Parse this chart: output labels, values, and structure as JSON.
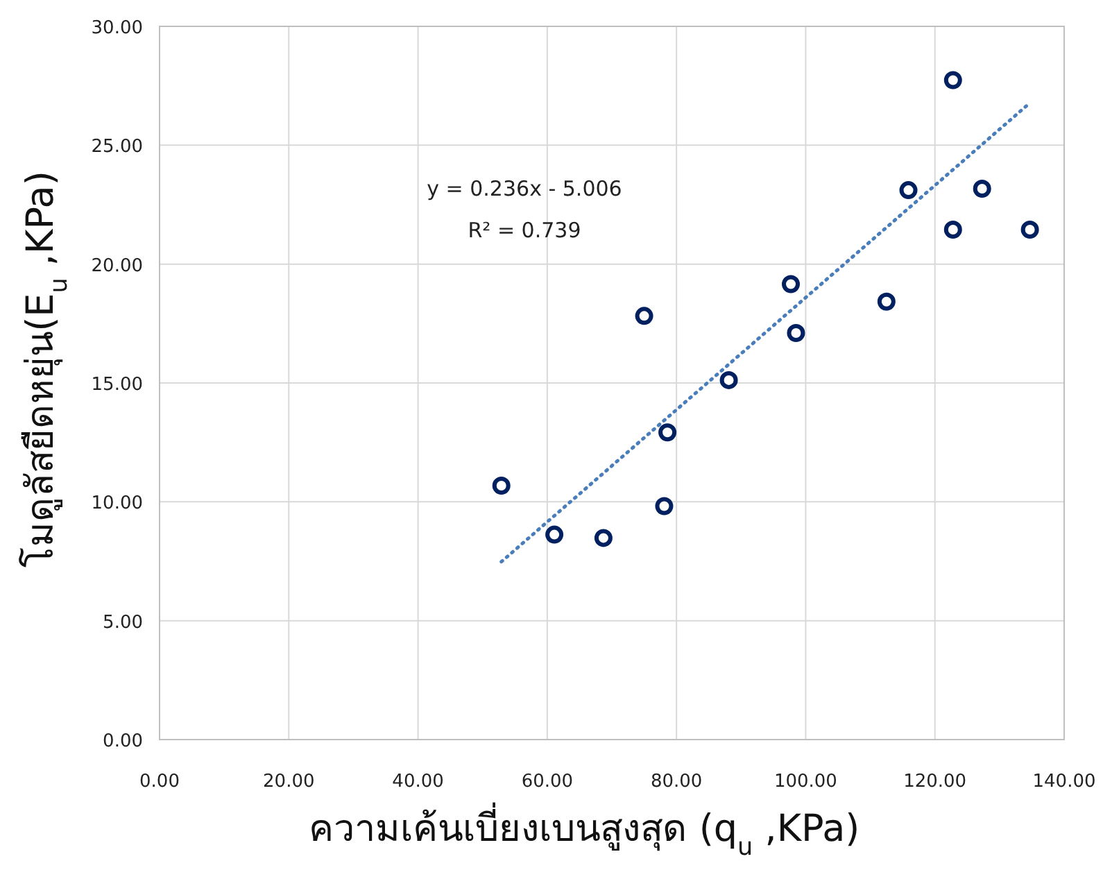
{
  "chart_data": {
    "type": "scatter",
    "xlabel": "ความเค้นเบี่ยงเบนสูงสุด (q$_{u}$ ,KPa)",
    "ylabel": "โมดูลัสยืดหยุ่น(E$_{u}$ ,KPa)",
    "annotations": [
      "y = 0.236x - 5.006",
      "R² = 0.739"
    ],
    "xlim": [
      0,
      140
    ],
    "ylim": [
      0,
      30
    ],
    "xticks": [
      {
        "value": 0,
        "label": "0.00"
      },
      {
        "value": 20,
        "label": "20.00"
      },
      {
        "value": 40,
        "label": "40.00"
      },
      {
        "value": 60,
        "label": "60.00"
      },
      {
        "value": 80,
        "label": "80.00"
      },
      {
        "value": 100,
        "label": "100.00"
      },
      {
        "value": 120,
        "label": "120.00"
      },
      {
        "value": 140,
        "label": "140.00"
      }
    ],
    "yticks": [
      {
        "value": 0,
        "label": "0.00"
      },
      {
        "value": 5,
        "label": "5.00"
      },
      {
        "value": 10,
        "label": "10.00"
      },
      {
        "value": 15,
        "label": "15.00"
      },
      {
        "value": 20,
        "label": "20.00"
      },
      {
        "value": 25,
        "label": "25.00"
      },
      {
        "value": 30,
        "label": "30.00"
      }
    ],
    "grid": true,
    "series": [
      {
        "marker": "circle",
        "color": "#002060",
        "x": [
          52.9,
          61.1,
          68.7,
          78.1,
          78.6,
          75.0,
          88.1,
          97.7,
          98.5,
          112.5,
          115.9,
          122.8,
          122.8,
          127.3,
          134.7
        ],
        "values": [
          10.68,
          8.62,
          8.48,
          9.82,
          12.92,
          17.82,
          15.12,
          19.16,
          17.1,
          18.42,
          23.11,
          27.74,
          21.45,
          23.17,
          21.45
        ]
      },
      {
        "type": "line",
        "marker": "none",
        "line_style": "dotted",
        "color": "#4a7ebb",
        "x": [
          52.9,
          134.7
        ],
        "values": [
          7.48,
          26.78
        ]
      }
    ]
  }
}
